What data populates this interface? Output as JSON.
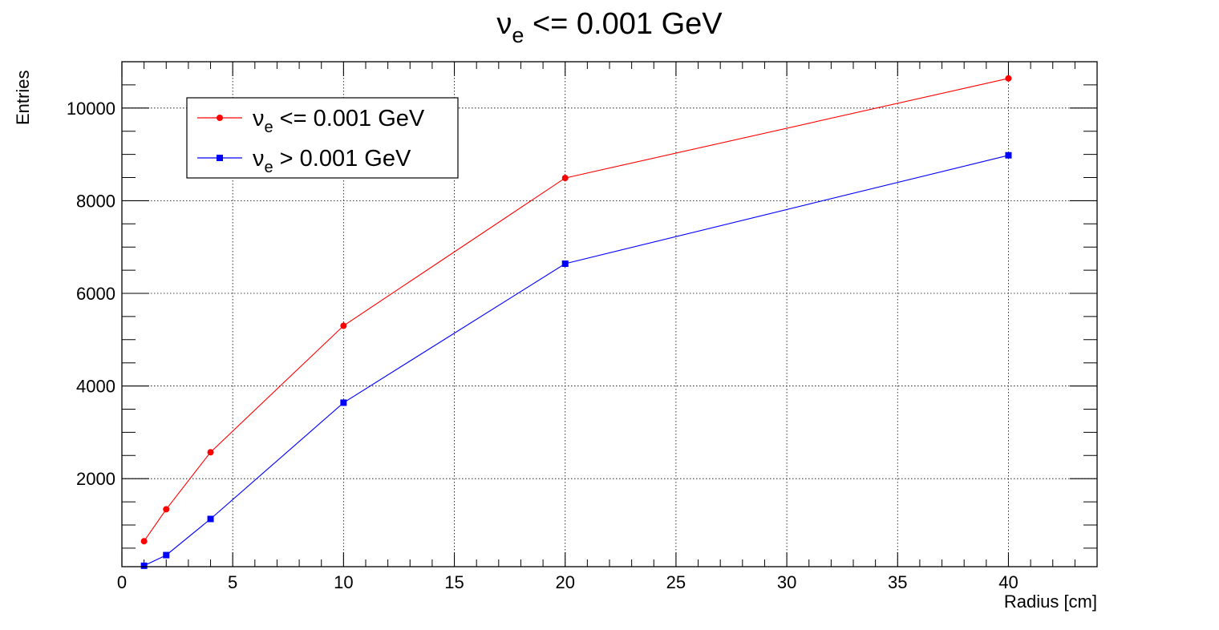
{
  "chart_data": {
    "type": "line",
    "title": {
      "main": "ν",
      "sub": "e",
      "rest": " <= 0.001 GeV"
    },
    "xlabel": "Radius [cm]",
    "ylabel": "Entries",
    "xlim": [
      0,
      44
    ],
    "ylim": [
      100,
      11000
    ],
    "xticks": [
      0,
      5,
      10,
      15,
      20,
      25,
      30,
      35,
      40
    ],
    "yticks": [
      2000,
      4000,
      6000,
      8000,
      10000
    ],
    "grid": true,
    "legend_position": "top-left",
    "series": [
      {
        "name": {
          "main": "ν",
          "sub": "e",
          "rest": " <= 0.001 GeV"
        },
        "color": "#ff0000",
        "marker": "circle",
        "x": [
          1,
          2,
          4,
          10,
          20,
          40
        ],
        "y": [
          650,
          1340,
          2570,
          5300,
          8490,
          10640
        ]
      },
      {
        "name": {
          "main": "ν",
          "sub": "e",
          "rest": " > 0.001 GeV"
        },
        "color": "#0000ff",
        "marker": "square",
        "x": [
          1,
          2,
          4,
          10,
          20,
          40
        ],
        "y": [
          120,
          350,
          1130,
          3640,
          6640,
          8980
        ]
      }
    ]
  }
}
